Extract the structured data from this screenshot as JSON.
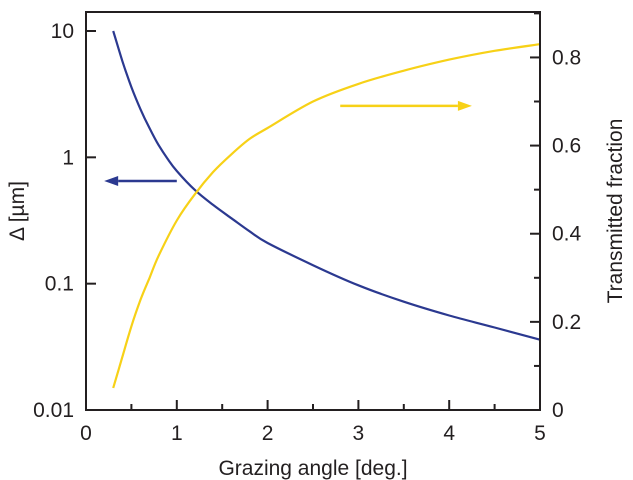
{
  "chart_data": {
    "type": "line",
    "xlabel": "Grazing angle [deg.]",
    "ylabel_left": "Δ [µm]",
    "ylabel_right": "Transmitted fraction",
    "xlim": [
      0,
      5
    ],
    "ylim_left": [
      0.01,
      10
    ],
    "ylim_right": [
      0,
      0.85
    ],
    "left_scale": "log",
    "right_scale": "linear",
    "grid": false,
    "x_ticks": [
      0,
      1,
      2,
      3,
      4,
      5
    ],
    "x_tick_labels": [
      "0",
      "1",
      "2",
      "3",
      "4",
      "5"
    ],
    "left_ticks": [
      0.01,
      0.1,
      1,
      10
    ],
    "left_tick_labels": [
      "0.01",
      "0.1",
      "1",
      "10"
    ],
    "right_ticks": [
      0,
      0.2,
      0.4,
      0.6,
      0.8
    ],
    "right_tick_labels": [
      "0",
      "0.2",
      "0.4",
      "0.6",
      "0.8"
    ],
    "series": [
      {
        "axis": "left",
        "color": "#2b3990",
        "x": [
          0.3,
          0.4,
          0.5,
          0.6,
          0.7,
          0.8,
          0.9,
          1.0,
          1.2,
          1.4,
          1.6,
          1.8,
          2.0,
          2.5,
          3.0,
          3.5,
          4.0,
          4.5,
          5.0
        ],
        "y": [
          10,
          5.8,
          3.6,
          2.4,
          1.7,
          1.25,
          0.97,
          0.78,
          0.55,
          0.42,
          0.33,
          0.26,
          0.21,
          0.14,
          0.097,
          0.072,
          0.056,
          0.045,
          0.036
        ]
      },
      {
        "axis": "right",
        "color": "#f7d117",
        "x": [
          0.3,
          0.4,
          0.5,
          0.6,
          0.7,
          0.8,
          1.0,
          1.2,
          1.4,
          1.6,
          1.8,
          2.0,
          2.5,
          3.0,
          3.5,
          4.0,
          4.5,
          5.0
        ],
        "y": [
          0.05,
          0.12,
          0.19,
          0.25,
          0.3,
          0.35,
          0.43,
          0.49,
          0.54,
          0.58,
          0.615,
          0.64,
          0.7,
          0.74,
          0.77,
          0.795,
          0.815,
          0.83
        ]
      }
    ],
    "arrows": [
      {
        "direction": "left",
        "color": "#2b3990",
        "x_from": 1.0,
        "x_to": 0.2,
        "y_left": 0.65
      },
      {
        "direction": "right",
        "color": "#f7d117",
        "x_from": 2.8,
        "x_to": 4.25,
        "y_right": 0.69
      }
    ]
  }
}
